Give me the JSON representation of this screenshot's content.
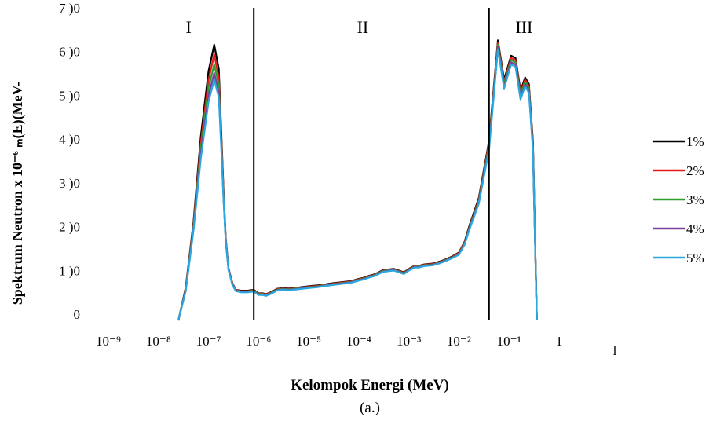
{
  "chart_data": {
    "type": "line",
    "title": "",
    "caption": "(a.)",
    "xlabel": "Kelompok Energi (MeV)",
    "ylabel": "Spektrum Neutron x 10⁻⁶ ₘ(E)(MeV-",
    "x_scale": "log",
    "x_ticks": [
      "10⁻⁹",
      "10⁻⁸",
      "10⁻⁷",
      "10⁻⁶",
      "10⁻⁵",
      "10⁻⁴",
      "10⁻³",
      "10⁻²",
      "10⁻¹",
      "1"
    ],
    "x_tick_values": [
      1e-09,
      1e-08,
      1e-07,
      1e-06,
      1e-05,
      0.0001,
      0.001,
      0.01,
      0.1,
      1
    ],
    "y_ticks": [
      "0",
      "1 )0",
      "2 )0",
      "3 )0",
      "4 )0",
      "5 )0",
      "6 )0",
      "7 )0"
    ],
    "ylim": [
      0,
      700
    ],
    "stray_label": "l",
    "regions": [
      {
        "label": "I",
        "x": 4e-08
      },
      {
        "label": "II",
        "x": 0.00012
      },
      {
        "label": "III",
        "x": 0.2
      }
    ],
    "boundaries": [
      8e-07,
      0.04
    ],
    "grid": false,
    "legend_position": "right",
    "x": [
      2.5e-08,
      3.5e-08,
      5e-08,
      7e-08,
      1e-07,
      1.3e-07,
      1.6e-07,
      1.8e-07,
      2e-07,
      2.2e-07,
      2.5e-07,
      3e-07,
      3.5e-07,
      4.5e-07,
      6e-07,
      8e-07,
      1e-06,
      1.2e-06,
      1.4e-06,
      1.8e-06,
      2.3e-06,
      3e-06,
      4e-06,
      6e-06,
      1e-05,
      1.5e-05,
      2e-05,
      3e-05,
      5e-05,
      7e-05,
      0.0001,
      0.00013,
      0.00016,
      0.0002,
      0.00025,
      0.0003,
      0.0005,
      0.0008,
      0.001,
      0.0013,
      0.0016,
      0.002,
      0.003,
      0.004,
      0.005,
      0.007,
      0.01,
      0.013,
      0.016,
      0.025,
      0.04,
      0.06,
      0.08,
      0.11,
      0.135,
      0.17,
      0.21,
      0.25,
      0.3,
      0.36,
      0.43,
      0.5,
      0.58,
      0.65,
      0.75,
      0.9,
      1.1,
      1.4,
      1.8,
      2.2
    ],
    "series": [
      {
        "name": "1%",
        "color": "#000000",
        "values": [
          0,
          75,
          225,
          420,
          570,
          630,
          575,
          430,
          290,
          190,
          120,
          85,
          70,
          68,
          68,
          70,
          62,
          62,
          60,
          65,
          72,
          74,
          73,
          75,
          78,
          80,
          82,
          85,
          88,
          90,
          95,
          98,
          102,
          105,
          110,
          115,
          118,
          110,
          118,
          125,
          125,
          128,
          130,
          134,
          138,
          145,
          155,
          180,
          215,
          280,
          410,
          640,
          550,
          605,
          600,
          525,
          555,
          540,
          410,
          0,
          0,
          0,
          0,
          0,
          0,
          0,
          0,
          0,
          0,
          0
        ]
      },
      {
        "name": "2%",
        "color": "#e41a1c",
        "values": [
          0,
          73,
          220,
          405,
          550,
          608,
          555,
          420,
          285,
          188,
          119,
          84,
          70,
          67,
          67,
          69,
          61,
          61,
          59,
          64,
          71,
          73,
          72,
          74,
          77,
          79,
          81,
          84,
          87,
          89,
          94,
          97,
          101,
          104,
          109,
          114,
          117,
          109,
          117,
          124,
          124,
          127,
          129,
          133,
          137,
          144,
          154,
          178,
          212,
          276,
          405,
          635,
          545,
          600,
          595,
          520,
          550,
          535,
          405,
          0,
          0,
          0,
          0,
          0,
          0,
          0,
          0,
          0,
          0,
          0
        ]
      },
      {
        "name": "3%",
        "color": "#2ca02c",
        "values": [
          0,
          71,
          215,
          392,
          532,
          585,
          538,
          410,
          280,
          186,
          118,
          83,
          69,
          66,
          66,
          68,
          60,
          60,
          58,
          63,
          70,
          72,
          71,
          73,
          76,
          78,
          80,
          83,
          86,
          88,
          93,
          96,
          100,
          103,
          108,
          113,
          116,
          108,
          116,
          123,
          123,
          126,
          128,
          132,
          136,
          143,
          152,
          176,
          210,
          273,
          400,
          630,
          540,
          595,
          590,
          515,
          545,
          530,
          400,
          0,
          0,
          0,
          0,
          0,
          0,
          0,
          0,
          0,
          0,
          0
        ]
      },
      {
        "name": "4%",
        "color": "#7b3f9e",
        "values": [
          0,
          69,
          210,
          380,
          515,
          565,
          522,
          400,
          275,
          184,
          117,
          82,
          68,
          65,
          65,
          67,
          59,
          59,
          57,
          62,
          69,
          71,
          70,
          72,
          75,
          77,
          79,
          82,
          85,
          87,
          92,
          95,
          99,
          102,
          107,
          112,
          115,
          107,
          115,
          122,
          122,
          125,
          127,
          131,
          135,
          142,
          151,
          175,
          208,
          270,
          395,
          625,
          535,
          590,
          585,
          510,
          540,
          525,
          395,
          0,
          0,
          0,
          0,
          0,
          0,
          0,
          0,
          0,
          0,
          0
        ]
      },
      {
        "name": "5%",
        "color": "#29a8e0",
        "values": [
          0,
          67,
          205,
          370,
          500,
          550,
          510,
          392,
          270,
          182,
          116,
          81,
          67,
          64,
          64,
          66,
          58,
          58,
          56,
          61,
          68,
          70,
          69,
          71,
          74,
          76,
          78,
          81,
          84,
          86,
          91,
          94,
          98,
          101,
          106,
          111,
          114,
          106,
          114,
          121,
          121,
          124,
          126,
          130,
          134,
          141,
          150,
          173,
          206,
          267,
          390,
          620,
          530,
          585,
          580,
          505,
          535,
          520,
          390,
          0,
          0,
          0,
          0,
          0,
          0,
          0,
          0,
          0,
          0,
          0
        ]
      }
    ]
  }
}
